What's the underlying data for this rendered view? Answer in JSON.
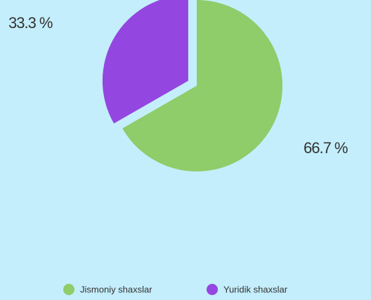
{
  "chart_data": {
    "type": "pie",
    "categories": [
      "Jismoniy shaxslar",
      "Yuridik shaxslar"
    ],
    "values": [
      66.7,
      33.3
    ],
    "value_labels": [
      "66.7 %",
      "33.3 %"
    ],
    "colors": [
      "#8fcc6a",
      "#9446e0"
    ]
  }
}
